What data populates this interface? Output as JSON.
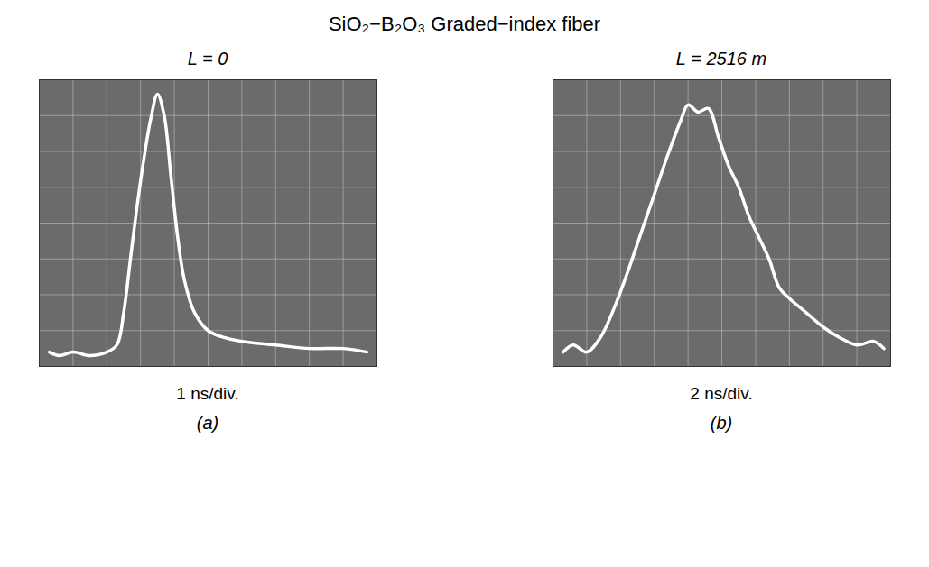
{
  "title": "SiO₂−B₂O₃ Graded−index fiber",
  "chart_data": [
    {
      "type": "line",
      "title": "L = 0",
      "xlabel": "1 ns/div.",
      "panel": "(a)",
      "color": "#ffffff",
      "grid": true,
      "tick_labels": false,
      "xlim": [
        0,
        10
      ],
      "ylim": [
        0,
        8
      ],
      "xticks": [
        0,
        1,
        2,
        3,
        4,
        5,
        6,
        7,
        8,
        9,
        10
      ],
      "yticks": [
        0,
        1,
        2,
        3,
        4,
        5,
        6,
        7,
        8
      ],
      "x": [
        0.3,
        0.6,
        1.0,
        1.5,
        2.0,
        2.3,
        2.5,
        2.7,
        2.9,
        3.1,
        3.3,
        3.5,
        3.7,
        3.9,
        4.1,
        4.3,
        4.6,
        5.0,
        5.5,
        6.0,
        7.0,
        8.0,
        9.0,
        9.7
      ],
      "values": [
        0.4,
        0.3,
        0.4,
        0.3,
        0.4,
        0.6,
        1.5,
        3.0,
        4.5,
        5.8,
        6.9,
        7.6,
        7.0,
        5.3,
        3.6,
        2.4,
        1.5,
        1.0,
        0.8,
        0.7,
        0.6,
        0.5,
        0.5,
        0.4
      ]
    },
    {
      "type": "line",
      "title": "L = 2516 m",
      "xlabel": "2 ns/div.",
      "panel": "(b)",
      "color": "#ffffff",
      "grid": true,
      "tick_labels": false,
      "xlim": [
        0,
        10
      ],
      "ylim": [
        0,
        8
      ],
      "xticks": [
        0,
        1,
        2,
        3,
        4,
        5,
        6,
        7,
        8,
        9,
        10
      ],
      "yticks": [
        0,
        1,
        2,
        3,
        4,
        5,
        6,
        7,
        8
      ],
      "x": [
        0.3,
        0.6,
        1.0,
        1.4,
        1.8,
        2.2,
        2.6,
        3.0,
        3.4,
        3.8,
        4.0,
        4.3,
        4.6,
        4.9,
        5.2,
        5.5,
        5.8,
        6.1,
        6.4,
        6.7,
        7.0,
        7.5,
        8.0,
        8.5,
        9.0,
        9.5,
        9.8
      ],
      "values": [
        0.4,
        0.6,
        0.4,
        0.8,
        1.6,
        2.6,
        3.7,
        4.8,
        5.9,
        6.9,
        7.3,
        7.1,
        7.2,
        6.4,
        5.6,
        5.0,
        4.2,
        3.6,
        3.0,
        2.2,
        1.9,
        1.5,
        1.1,
        0.8,
        0.6,
        0.7,
        0.5
      ]
    }
  ]
}
